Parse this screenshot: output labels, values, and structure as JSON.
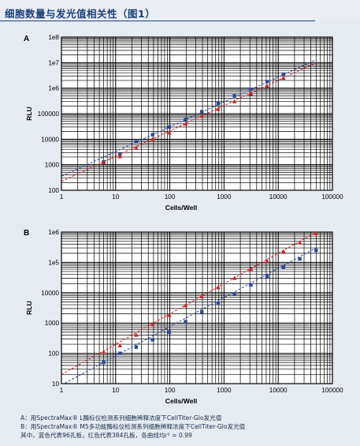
{
  "page": {
    "title": "细胞数量与发光值相关性（图1）"
  },
  "colors": {
    "blue": "#2c4a9c",
    "red": "#d21f26",
    "axis": "#000000"
  },
  "caption": {
    "line1": "A：用SpectraMax® L酶标仪检测系列细胞稀释浓度下CellTiter-Glo发光值",
    "line2": "B：用SpectraMax® M5多功能酶标仪检测系列细胞稀释浓度下CellTiter-Glo发光值",
    "line3": "其中，蓝色代表96孔板，红色代表384孔板，各曲线均r² = 0.99"
  },
  "chart_data": [
    {
      "panel": "A",
      "type": "scatter",
      "xlabel": "Cells/Well",
      "ylabel": "RLU",
      "xscale": "log",
      "yscale": "log",
      "xlim": [
        1,
        100000
      ],
      "ylim": [
        100,
        100000000
      ],
      "x_ticks": [
        "1",
        "10",
        "100",
        "1000",
        "10000",
        "100000"
      ],
      "y_ticks": [
        "100",
        "1000",
        "10000",
        "100000",
        "1e6",
        "1e7",
        "1e8"
      ],
      "grid": true,
      "series": [
        {
          "color": "blue",
          "x": [
            6,
            12,
            24,
            48,
            98,
            195,
            390,
            780,
            1560,
            3125,
            6250,
            12500
          ],
          "y": [
            1300,
            2500,
            8000,
            15000,
            30000,
            60000,
            120000,
            250000,
            500000,
            900000,
            1800000,
            3500000
          ],
          "fit": [
            [
              1,
              350
            ],
            [
              50000,
              13000000
            ]
          ]
        },
        {
          "color": "red",
          "x": [
            6,
            12,
            24,
            48,
            98,
            195,
            390,
            780,
            1560,
            3125,
            6250,
            12500
          ],
          "y": [
            1200,
            2100,
            4500,
            10000,
            18000,
            40000,
            80000,
            150000,
            300000,
            600000,
            1200000,
            2500000
          ],
          "fit": [
            [
              1,
              220
            ],
            [
              50000,
              10000000
            ]
          ]
        }
      ]
    },
    {
      "panel": "B",
      "type": "scatter",
      "xlabel": "Cells/Well",
      "ylabel": "RLU",
      "xscale": "log",
      "yscale": "log",
      "xlim": [
        1,
        100000
      ],
      "ylim": [
        10,
        1000000
      ],
      "x_ticks": [
        "1",
        "10",
        "100",
        "1000",
        "10000",
        "100000"
      ],
      "y_ticks": [
        "10",
        "100",
        "1000",
        "10000",
        "1e5",
        "1e6"
      ],
      "grid": true,
      "series": [
        {
          "color": "blue",
          "x": [
            6,
            12,
            24,
            48,
            98,
            195,
            390,
            780,
            1560,
            3125,
            6250,
            12500,
            25000,
            50000
          ],
          "y": [
            50,
            100,
            160,
            280,
            500,
            1100,
            2300,
            4500,
            9000,
            18000,
            35000,
            70000,
            130000,
            250000
          ],
          "fit": [
            [
              1,
              9
            ],
            [
              55000,
              330000
            ]
          ]
        },
        {
          "color": "red",
          "x": [
            6,
            12,
            24,
            48,
            98,
            195,
            390,
            780,
            1560,
            3125,
            6250,
            12500,
            25000,
            50000
          ],
          "y": [
            110,
            180,
            400,
            900,
            1800,
            3800,
            7500,
            15000,
            30000,
            60000,
            110000,
            230000,
            450000,
            900000
          ],
          "fit": [
            [
              1,
              20
            ],
            [
              55000,
              1100000
            ]
          ]
        }
      ]
    }
  ]
}
